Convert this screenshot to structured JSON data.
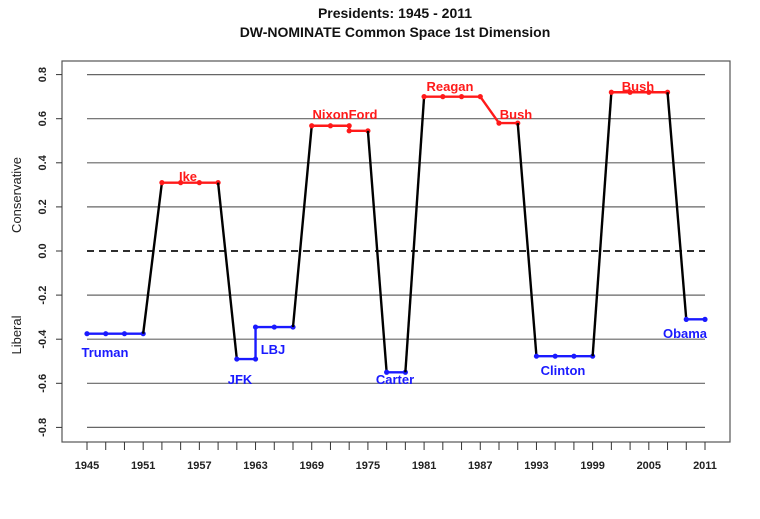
{
  "chart_data": {
    "type": "line",
    "title": "Presidents: 1945 - 2011",
    "subtitle": "DW-NOMINATE Common Space 1st Dimension",
    "ylabel_top": "Conservative",
    "ylabel_bottom": "Liberal",
    "xlim": [
      1945,
      2011
    ],
    "ylim": [
      -0.8,
      0.8
    ],
    "xticks": [
      1945,
      1951,
      1957,
      1963,
      1969,
      1975,
      1981,
      1987,
      1993,
      1999,
      2005,
      2011
    ],
    "xminor_step": 2,
    "yticks": [
      "0.8",
      "0.6",
      "0.4",
      "0.2",
      "0.0",
      "-0.2",
      "-0.4",
      "-0.6",
      "-0.8"
    ],
    "grid": "horizontal",
    "zero_line": "dashed",
    "colors": {
      "Democrat": "#1a1aff",
      "Republican": "#ff1a1a",
      "transition": "#000000"
    },
    "series": [
      {
        "party": "Democrat",
        "points": [
          [
            1945,
            -0.375
          ],
          [
            1947,
            -0.375
          ],
          [
            1949,
            -0.375
          ],
          [
            1951,
            -0.375
          ]
        ]
      },
      {
        "party": "Republican",
        "points": [
          [
            1953,
            0.31
          ],
          [
            1955,
            0.31
          ],
          [
            1957,
            0.31
          ],
          [
            1959,
            0.31
          ]
        ]
      },
      {
        "party": "Democrat",
        "points": [
          [
            1961,
            -0.49
          ],
          [
            1963,
            -0.49
          ]
        ]
      },
      {
        "party": "Democrat",
        "points": [
          [
            1963,
            -0.345
          ],
          [
            1965,
            -0.345
          ],
          [
            1967,
            -0.345
          ]
        ]
      },
      {
        "party": "Republican",
        "points": [
          [
            1969,
            0.568
          ],
          [
            1971,
            0.568
          ],
          [
            1973,
            0.568
          ]
        ]
      },
      {
        "party": "Republican",
        "points": [
          [
            1973,
            0.545
          ],
          [
            1975,
            0.545
          ]
        ]
      },
      {
        "party": "Democrat",
        "points": [
          [
            1977,
            -0.55
          ],
          [
            1979,
            -0.55
          ]
        ]
      },
      {
        "party": "Republican",
        "points": [
          [
            1981,
            0.7
          ],
          [
            1983,
            0.7
          ],
          [
            1985,
            0.7
          ],
          [
            1987,
            0.7
          ]
        ]
      },
      {
        "party": "Republican",
        "points": [
          [
            1989,
            0.58
          ],
          [
            1991,
            0.58
          ]
        ]
      },
      {
        "party": "Democrat",
        "points": [
          [
            1993,
            -0.477
          ],
          [
            1995,
            -0.477
          ],
          [
            1997,
            -0.477
          ],
          [
            1999,
            -0.477
          ]
        ]
      },
      {
        "party": "Republican",
        "points": [
          [
            2001,
            0.72
          ],
          [
            2003,
            0.72
          ],
          [
            2005,
            0.72
          ],
          [
            2007,
            0.72
          ]
        ]
      },
      {
        "party": "Democrat",
        "points": [
          [
            2009,
            -0.31
          ],
          [
            2011,
            -0.31
          ]
        ]
      }
    ],
    "labels": [
      {
        "text": "Truman",
        "party": "Democrat"
      },
      {
        "text": "Ike",
        "party": "Republican"
      },
      {
        "text": "JFK",
        "party": "Democrat"
      },
      {
        "text": "LBJ",
        "party": "Democrat"
      },
      {
        "text": "NixonFord",
        "party": "Republican"
      },
      {
        "text": "Carter",
        "party": "Democrat"
      },
      {
        "text": "Reagan",
        "party": "Republican"
      },
      {
        "text": "Bush",
        "party": "Republican"
      },
      {
        "text": "Clinton",
        "party": "Democrat"
      },
      {
        "text": "Bush",
        "party": "Republican"
      },
      {
        "text": "Obama",
        "party": "Democrat"
      }
    ]
  }
}
